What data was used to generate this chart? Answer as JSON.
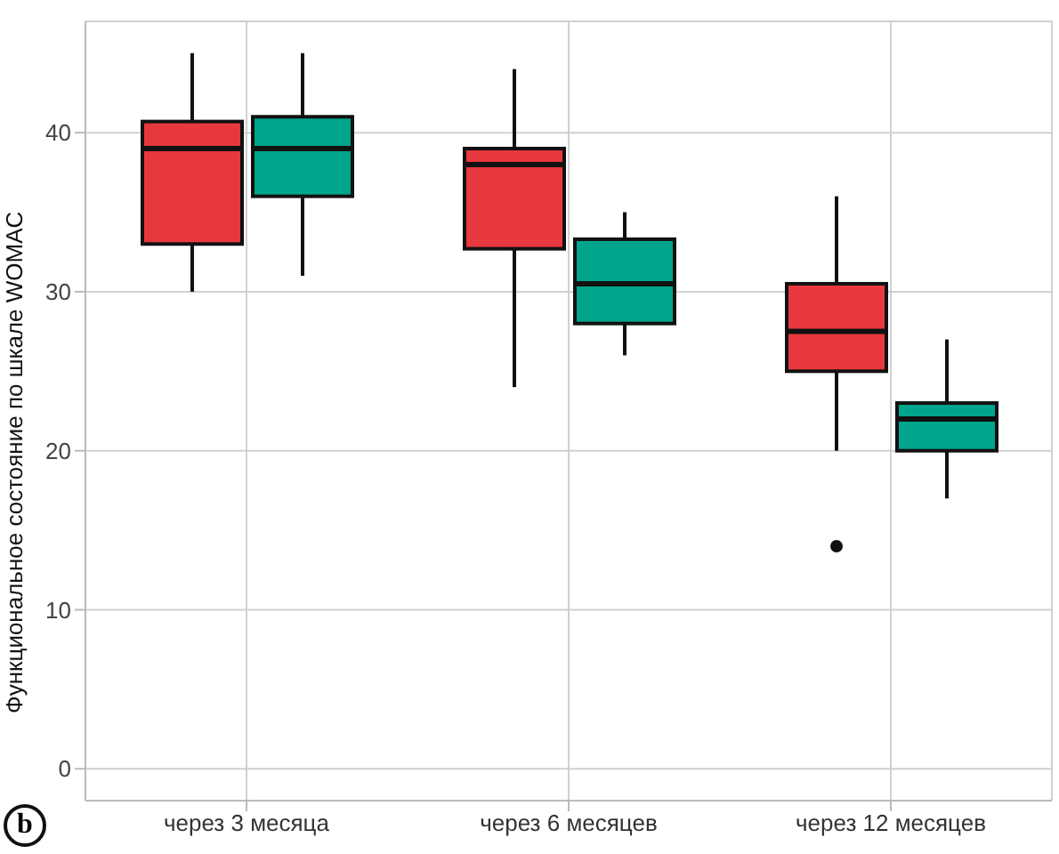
{
  "chart_data": {
    "type": "box",
    "ylabel": "Функциональное состояние по шкале WOMAC",
    "categories": [
      "через 3 месяца",
      "через 6 месяцев",
      "через 12 месяцев"
    ],
    "series": [
      {
        "color": "#e8383f",
        "boxes": [
          {
            "low": 30,
            "q1": 33,
            "median": 39,
            "q3": 40.7,
            "high": 45
          },
          {
            "low": 24,
            "q1": 32.7,
            "median": 38,
            "q3": 39,
            "high": 44
          },
          {
            "low": 20,
            "q1": 25,
            "median": 27.5,
            "q3": 30.5,
            "high": 36,
            "outliers": [
              14
            ]
          }
        ]
      },
      {
        "color": "#00a58c",
        "boxes": [
          {
            "low": 31,
            "q1": 36,
            "median": 39,
            "q3": 41,
            "high": 45
          },
          {
            "low": 26,
            "q1": 28,
            "median": 30.5,
            "q3": 33.3,
            "high": 35
          },
          {
            "low": 17,
            "q1": 20,
            "median": 22,
            "q3": 23,
            "high": 27
          }
        ]
      }
    ],
    "ylim": [
      -2,
      47
    ],
    "yticks": [
      0,
      10,
      20,
      30,
      40
    ],
    "grid": true,
    "annotations": [
      "b"
    ]
  }
}
